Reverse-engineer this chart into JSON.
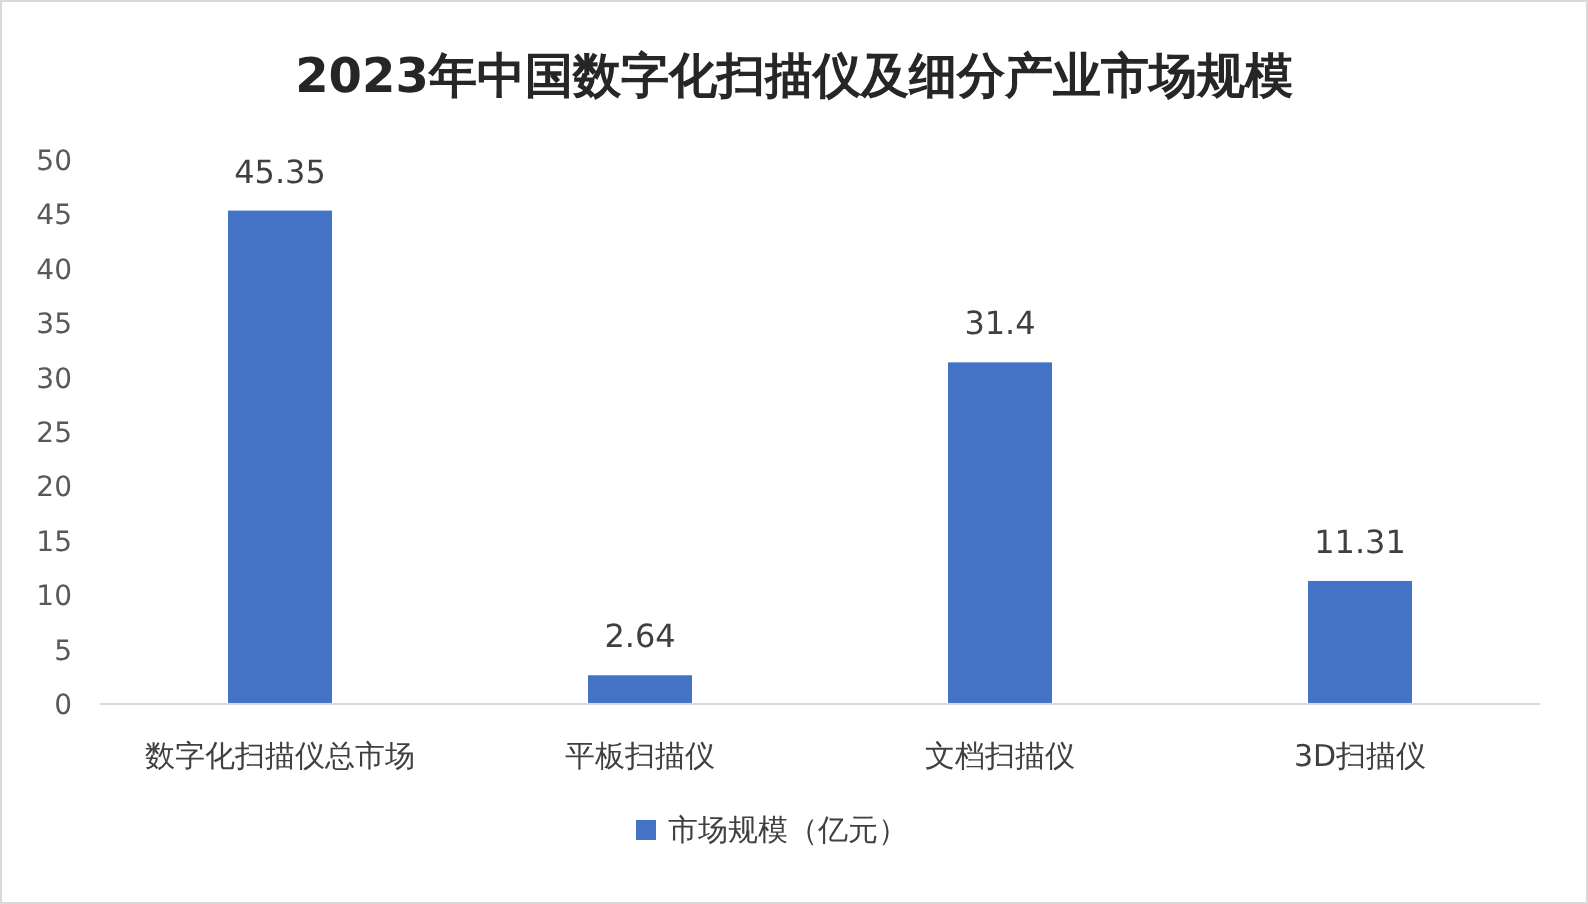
{
  "chart_data": {
    "type": "bar",
    "title": "2023年中国数字化扫描仪及细分产业市场规模",
    "categories": [
      "数字化扫描仪总市场",
      "平板扫描仪",
      "文档扫描仪",
      "3D扫描仪"
    ],
    "series": [
      {
        "name": "市场规模（亿元）",
        "color": "#4472c4",
        "values": [
          45.35,
          2.64,
          31.4,
          11.31
        ]
      }
    ],
    "ylim": [
      0,
      50
    ],
    "yticks": [
      0,
      5,
      10,
      15,
      20,
      25,
      30,
      35,
      40,
      45,
      50
    ],
    "data_labels": true,
    "legend": "bottom"
  }
}
